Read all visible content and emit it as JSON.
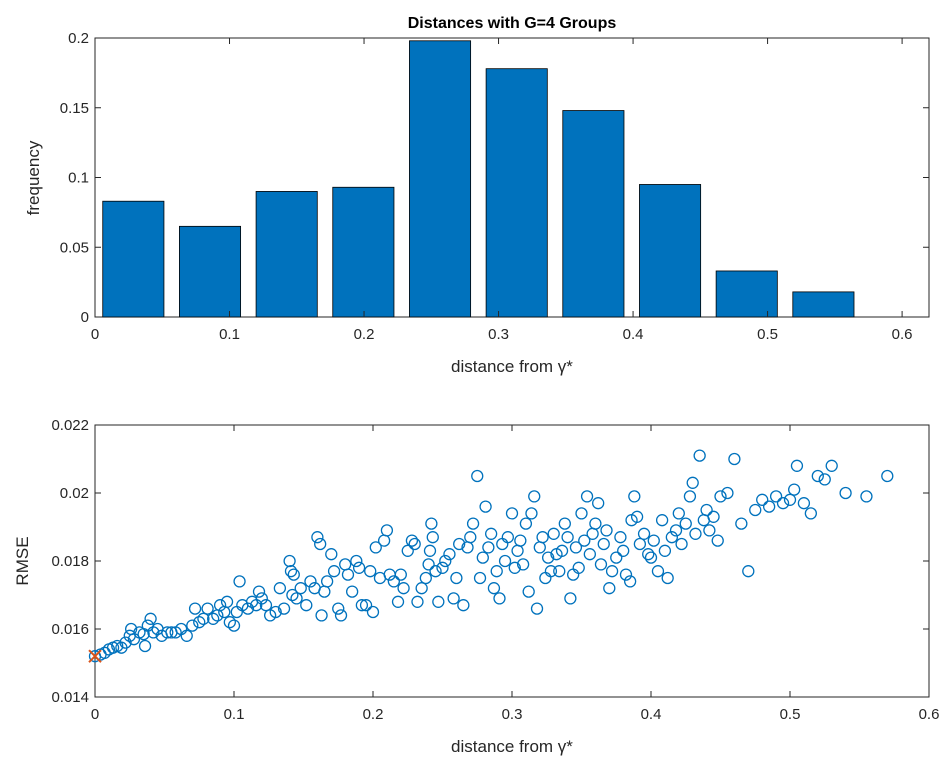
{
  "chart_data": [
    {
      "type": "bar",
      "title": "Distances with G=4 Groups",
      "xlabel": "distance from γ*",
      "ylabel": "frequency",
      "xlim": [
        0,
        0.62
      ],
      "ylim": [
        0,
        0.2
      ],
      "xticks": [
        0,
        0.1,
        0.2,
        0.3,
        0.4,
        0.5,
        0.6
      ],
      "xtick_labels": [
        "0",
        "0.1",
        "0.2",
        "0.3",
        "0.4",
        "0.5",
        "0.6"
      ],
      "yticks": [
        0,
        0.05,
        0.1,
        0.15,
        0.2
      ],
      "ytick_labels": [
        "0",
        "0.05",
        "0.1",
        "0.15",
        "0.2"
      ],
      "bar_width": 0.0455,
      "categories": [
        0.0285,
        0.0855,
        0.1425,
        0.1995,
        0.2565,
        0.3135,
        0.3705,
        0.4275,
        0.4845,
        0.5415
      ],
      "values": [
        0.083,
        0.065,
        0.09,
        0.093,
        0.198,
        0.178,
        0.148,
        0.095,
        0.033,
        0.018
      ],
      "bar_color": "#0072BD",
      "grid": false
    },
    {
      "type": "scatter",
      "title": "",
      "xlabel": "distance from γ*",
      "ylabel": "RMSE",
      "xlim": [
        0,
        0.6
      ],
      "ylim": [
        0.014,
        0.022
      ],
      "xticks": [
        0,
        0.1,
        0.2,
        0.3,
        0.4,
        0.5,
        0.6
      ],
      "xtick_labels": [
        "0",
        "0.1",
        "0.2",
        "0.3",
        "0.4",
        "0.5",
        "0.6"
      ],
      "yticks": [
        0.014,
        0.016,
        0.018,
        0.02,
        0.022
      ],
      "ytick_labels": [
        "0.014",
        "0.016",
        "0.018",
        "0.02",
        "0.022"
      ],
      "marker_color": "#0072BD",
      "reference_marker_color": "#D95319",
      "reference_point": [
        0.0,
        0.0152
      ],
      "grid": false,
      "points": [
        [
          0.0,
          0.0152
        ],
        [
          0.004,
          0.01525
        ],
        [
          0.007,
          0.0153
        ],
        [
          0.01,
          0.0154
        ],
        [
          0.013,
          0.01545
        ],
        [
          0.016,
          0.0155
        ],
        [
          0.019,
          0.01545
        ],
        [
          0.022,
          0.0156
        ],
        [
          0.025,
          0.0158
        ],
        [
          0.026,
          0.016
        ],
        [
          0.028,
          0.0157
        ],
        [
          0.032,
          0.0159
        ],
        [
          0.035,
          0.01585
        ],
        [
          0.036,
          0.0155
        ],
        [
          0.038,
          0.0161
        ],
        [
          0.04,
          0.0163
        ],
        [
          0.042,
          0.0159
        ],
        [
          0.045,
          0.016
        ],
        [
          0.048,
          0.0158
        ],
        [
          0.052,
          0.0159
        ],
        [
          0.055,
          0.0159
        ],
        [
          0.058,
          0.0159
        ],
        [
          0.062,
          0.016
        ],
        [
          0.066,
          0.0158
        ],
        [
          0.07,
          0.0161
        ],
        [
          0.072,
          0.0166
        ],
        [
          0.075,
          0.0162
        ],
        [
          0.078,
          0.0163
        ],
        [
          0.081,
          0.0166
        ],
        [
          0.085,
          0.0163
        ],
        [
          0.088,
          0.0164
        ],
        [
          0.09,
          0.0167
        ],
        [
          0.093,
          0.0165
        ],
        [
          0.095,
          0.0168
        ],
        [
          0.097,
          0.0162
        ],
        [
          0.1,
          0.0161
        ],
        [
          0.102,
          0.0165
        ],
        [
          0.104,
          0.0174
        ],
        [
          0.106,
          0.0167
        ],
        [
          0.11,
          0.0166
        ],
        [
          0.113,
          0.0168
        ],
        [
          0.116,
          0.0167
        ],
        [
          0.118,
          0.0171
        ],
        [
          0.12,
          0.0169
        ],
        [
          0.123,
          0.0167
        ],
        [
          0.126,
          0.0164
        ],
        [
          0.13,
          0.0165
        ],
        [
          0.133,
          0.0172
        ],
        [
          0.136,
          0.0166
        ],
        [
          0.14,
          0.018
        ],
        [
          0.141,
          0.0177
        ],
        [
          0.142,
          0.017
        ],
        [
          0.143,
          0.0176
        ],
        [
          0.145,
          0.0169
        ],
        [
          0.148,
          0.0172
        ],
        [
          0.152,
          0.0167
        ],
        [
          0.155,
          0.0174
        ],
        [
          0.158,
          0.0172
        ],
        [
          0.16,
          0.0187
        ],
        [
          0.162,
          0.0185
        ],
        [
          0.163,
          0.0164
        ],
        [
          0.165,
          0.0171
        ],
        [
          0.167,
          0.0174
        ],
        [
          0.17,
          0.0182
        ],
        [
          0.172,
          0.0177
        ],
        [
          0.175,
          0.0166
        ],
        [
          0.177,
          0.0164
        ],
        [
          0.18,
          0.0179
        ],
        [
          0.182,
          0.0176
        ],
        [
          0.185,
          0.0171
        ],
        [
          0.188,
          0.018
        ],
        [
          0.19,
          0.0178
        ],
        [
          0.192,
          0.0167
        ],
        [
          0.195,
          0.0167
        ],
        [
          0.198,
          0.0177
        ],
        [
          0.2,
          0.0165
        ],
        [
          0.202,
          0.0184
        ],
        [
          0.205,
          0.0175
        ],
        [
          0.208,
          0.0186
        ],
        [
          0.21,
          0.0189
        ],
        [
          0.212,
          0.0176
        ],
        [
          0.215,
          0.0174
        ],
        [
          0.218,
          0.0168
        ],
        [
          0.22,
          0.0176
        ],
        [
          0.222,
          0.0172
        ],
        [
          0.225,
          0.0183
        ],
        [
          0.228,
          0.0186
        ],
        [
          0.23,
          0.0185
        ],
        [
          0.232,
          0.0168
        ],
        [
          0.235,
          0.0172
        ],
        [
          0.238,
          0.0175
        ],
        [
          0.24,
          0.0179
        ],
        [
          0.241,
          0.0183
        ],
        [
          0.242,
          0.0191
        ],
        [
          0.243,
          0.0187
        ],
        [
          0.245,
          0.0177
        ],
        [
          0.247,
          0.0168
        ],
        [
          0.25,
          0.0178
        ],
        [
          0.252,
          0.018
        ],
        [
          0.255,
          0.0182
        ],
        [
          0.258,
          0.0169
        ],
        [
          0.26,
          0.0175
        ],
        [
          0.262,
          0.0185
        ],
        [
          0.265,
          0.0167
        ],
        [
          0.268,
          0.0184
        ],
        [
          0.27,
          0.0187
        ],
        [
          0.272,
          0.0191
        ],
        [
          0.275,
          0.0205
        ],
        [
          0.277,
          0.0175
        ],
        [
          0.279,
          0.0181
        ],
        [
          0.281,
          0.0196
        ],
        [
          0.283,
          0.0184
        ],
        [
          0.285,
          0.0188
        ],
        [
          0.287,
          0.0172
        ],
        [
          0.289,
          0.0177
        ],
        [
          0.291,
          0.0169
        ],
        [
          0.293,
          0.0185
        ],
        [
          0.295,
          0.018
        ],
        [
          0.297,
          0.0187
        ],
        [
          0.3,
          0.0194
        ],
        [
          0.302,
          0.0178
        ],
        [
          0.304,
          0.0183
        ],
        [
          0.306,
          0.0186
        ],
        [
          0.308,
          0.0179
        ],
        [
          0.31,
          0.0191
        ],
        [
          0.312,
          0.0171
        ],
        [
          0.314,
          0.0194
        ],
        [
          0.316,
          0.0199
        ],
        [
          0.318,
          0.0166
        ],
        [
          0.32,
          0.0184
        ],
        [
          0.322,
          0.0187
        ],
        [
          0.324,
          0.0175
        ],
        [
          0.326,
          0.0181
        ],
        [
          0.328,
          0.0177
        ],
        [
          0.33,
          0.0188
        ],
        [
          0.332,
          0.0182
        ],
        [
          0.334,
          0.0177
        ],
        [
          0.336,
          0.0183
        ],
        [
          0.338,
          0.0191
        ],
        [
          0.34,
          0.0187
        ],
        [
          0.342,
          0.0169
        ],
        [
          0.344,
          0.0176
        ],
        [
          0.346,
          0.0184
        ],
        [
          0.348,
          0.0178
        ],
        [
          0.35,
          0.0194
        ],
        [
          0.352,
          0.0186
        ],
        [
          0.354,
          0.0199
        ],
        [
          0.356,
          0.0182
        ],
        [
          0.358,
          0.0188
        ],
        [
          0.36,
          0.0191
        ],
        [
          0.362,
          0.0197
        ],
        [
          0.364,
          0.0179
        ],
        [
          0.366,
          0.0185
        ],
        [
          0.368,
          0.0189
        ],
        [
          0.37,
          0.0172
        ],
        [
          0.372,
          0.0177
        ],
        [
          0.375,
          0.0181
        ],
        [
          0.378,
          0.0187
        ],
        [
          0.38,
          0.0183
        ],
        [
          0.382,
          0.0176
        ],
        [
          0.385,
          0.0174
        ],
        [
          0.386,
          0.0192
        ],
        [
          0.388,
          0.0199
        ],
        [
          0.39,
          0.0193
        ],
        [
          0.392,
          0.0185
        ],
        [
          0.395,
          0.0188
        ],
        [
          0.398,
          0.0182
        ],
        [
          0.4,
          0.0181
        ],
        [
          0.402,
          0.0186
        ],
        [
          0.405,
          0.0177
        ],
        [
          0.408,
          0.0192
        ],
        [
          0.41,
          0.0183
        ],
        [
          0.412,
          0.0175
        ],
        [
          0.415,
          0.0187
        ],
        [
          0.418,
          0.0189
        ],
        [
          0.42,
          0.0194
        ],
        [
          0.422,
          0.0185
        ],
        [
          0.425,
          0.0191
        ],
        [
          0.428,
          0.0199
        ],
        [
          0.43,
          0.0203
        ],
        [
          0.432,
          0.0188
        ],
        [
          0.435,
          0.0211
        ],
        [
          0.438,
          0.0192
        ],
        [
          0.44,
          0.0195
        ],
        [
          0.442,
          0.0189
        ],
        [
          0.445,
          0.0193
        ],
        [
          0.448,
          0.0186
        ],
        [
          0.45,
          0.0199
        ],
        [
          0.455,
          0.02
        ],
        [
          0.46,
          0.021
        ],
        [
          0.465,
          0.0191
        ],
        [
          0.47,
          0.0177
        ],
        [
          0.475,
          0.0195
        ],
        [
          0.48,
          0.0198
        ],
        [
          0.485,
          0.0196
        ],
        [
          0.49,
          0.0199
        ],
        [
          0.495,
          0.0197
        ],
        [
          0.5,
          0.0198
        ],
        [
          0.503,
          0.0201
        ],
        [
          0.505,
          0.0208
        ],
        [
          0.51,
          0.0197
        ],
        [
          0.515,
          0.0194
        ],
        [
          0.52,
          0.0205
        ],
        [
          0.525,
          0.0204
        ],
        [
          0.53,
          0.0208
        ],
        [
          0.54,
          0.02
        ],
        [
          0.555,
          0.0199
        ],
        [
          0.57,
          0.0205
        ]
      ]
    }
  ]
}
